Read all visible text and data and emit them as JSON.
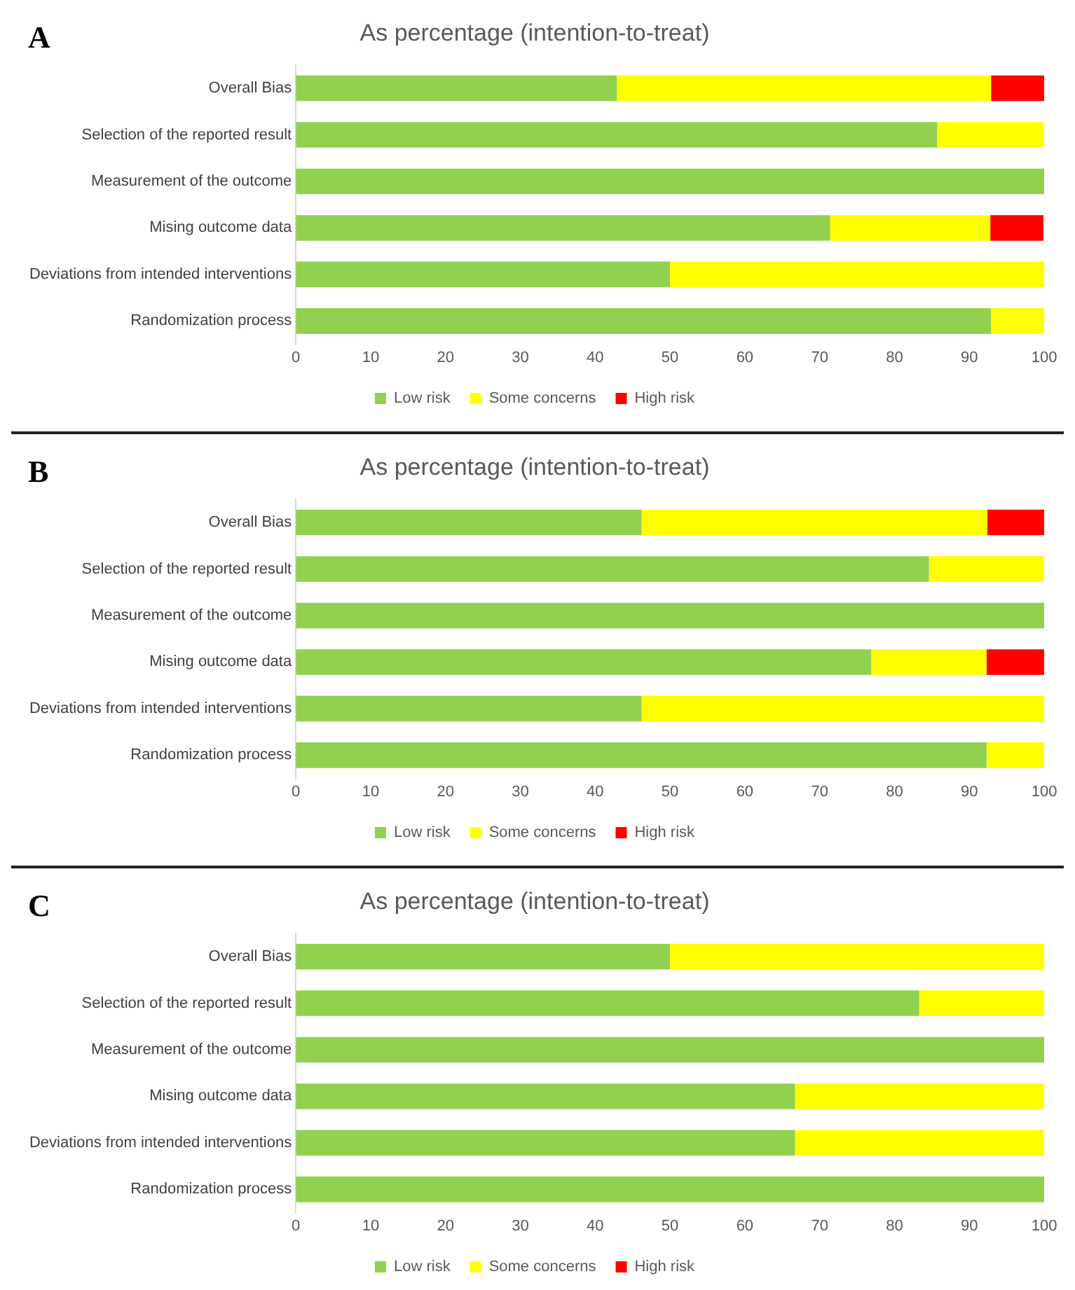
{
  "chart_data": [
    {
      "type": "bar",
      "orientation": "horizontal",
      "stacked": true,
      "title": "As percentage (intention-to-treat)",
      "annotations": [
        "A"
      ],
      "categories": [
        "Overall Bias",
        "Selection of the reported result",
        "Measurement of the outcome",
        "Mising outcome data",
        "Deviations from intended interventions",
        "Randomization process"
      ],
      "xlim": [
        0,
        100
      ],
      "xticks": [
        0,
        10,
        20,
        30,
        40,
        50,
        60,
        70,
        80,
        90,
        100
      ],
      "grid": false,
      "legend": "bottom",
      "series": [
        {
          "name": "Low risk",
          "color": "#92d050",
          "values": [
            42.9,
            85.7,
            100,
            71.4,
            50,
            92.9
          ]
        },
        {
          "name": "Some concerns",
          "color": "#ffff00",
          "values": [
            50,
            14.3,
            0,
            21.4,
            50,
            7.1
          ]
        },
        {
          "name": "High risk",
          "color": "#ff0000",
          "values": [
            7.1,
            0,
            0,
            7.1,
            0,
            0
          ]
        }
      ]
    },
    {
      "type": "bar",
      "orientation": "horizontal",
      "stacked": true,
      "title": "As percentage (intention-to-treat)",
      "annotations": [
        "B"
      ],
      "categories": [
        "Overall Bias",
        "Selection of the reported result",
        "Measurement of the outcome",
        "Mising outcome data",
        "Deviations from intended interventions",
        "Randomization process"
      ],
      "xlim": [
        0,
        100
      ],
      "xticks": [
        0,
        10,
        20,
        30,
        40,
        50,
        60,
        70,
        80,
        90,
        100
      ],
      "grid": false,
      "legend": "bottom",
      "series": [
        {
          "name": "Low risk",
          "color": "#92d050",
          "values": [
            46.2,
            84.6,
            100,
            76.9,
            46.2,
            92.3
          ]
        },
        {
          "name": "Some concerns",
          "color": "#ffff00",
          "values": [
            46.2,
            15.4,
            0,
            15.4,
            53.8,
            7.7
          ]
        },
        {
          "name": "High risk",
          "color": "#ff0000",
          "values": [
            7.7,
            0,
            0,
            7.7,
            0,
            0
          ]
        }
      ]
    },
    {
      "type": "bar",
      "orientation": "horizontal",
      "stacked": true,
      "title": "As percentage (intention-to-treat)",
      "annotations": [
        "C"
      ],
      "categories": [
        "Overall Bias",
        "Selection of the reported result",
        "Measurement of the outcome",
        "Mising outcome data",
        "Deviations from intended interventions",
        "Randomization process"
      ],
      "xlim": [
        0,
        100
      ],
      "xticks": [
        0,
        10,
        20,
        30,
        40,
        50,
        60,
        70,
        80,
        90,
        100
      ],
      "grid": false,
      "legend": "bottom",
      "series": [
        {
          "name": "Low risk",
          "color": "#92d050",
          "values": [
            50,
            83.3,
            100,
            66.7,
            66.7,
            100
          ]
        },
        {
          "name": "Some concerns",
          "color": "#ffff00",
          "values": [
            50,
            16.7,
            0,
            33.3,
            33.3,
            0
          ]
        },
        {
          "name": "High risk",
          "color": "#ff0000",
          "values": [
            0,
            0,
            0,
            0,
            0,
            0
          ]
        }
      ]
    }
  ]
}
